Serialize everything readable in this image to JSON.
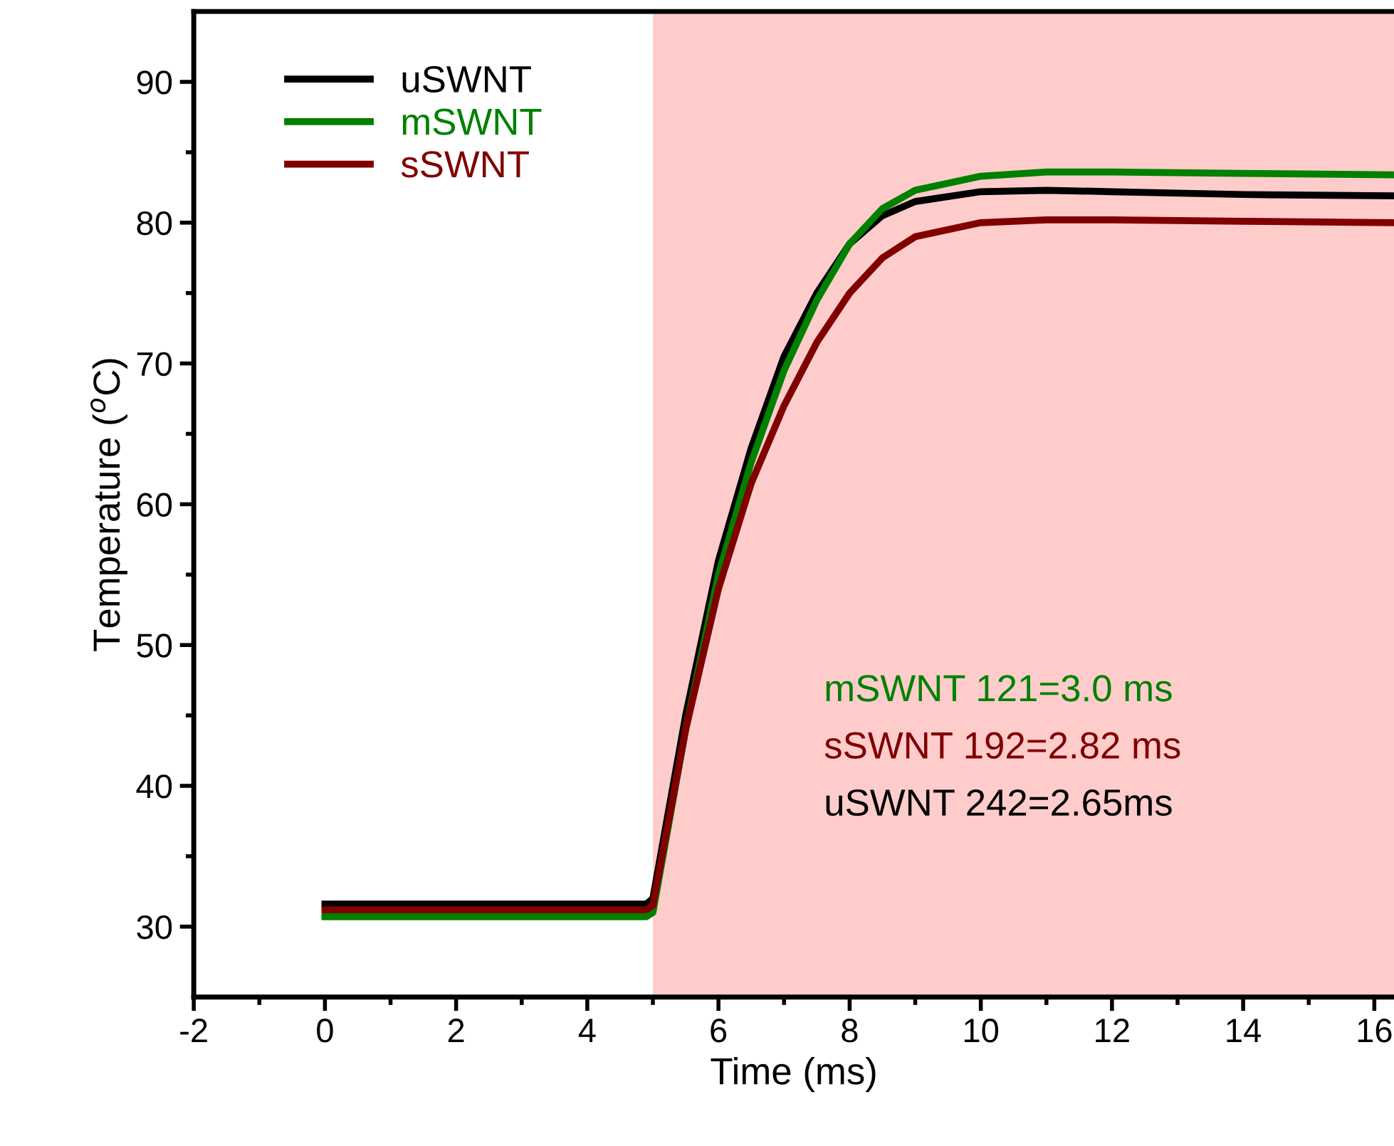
{
  "chart_data": {
    "type": "line",
    "xlabel": "Time (ms)",
    "ylabel": "Temperature ($^{o}$C)",
    "xlim": [
      -2,
      16.3
    ],
    "ylim": [
      25,
      95
    ],
    "xticks": [
      -2,
      0,
      2,
      4,
      6,
      8,
      10,
      12,
      14,
      16
    ],
    "yticks": [
      30,
      40,
      50,
      60,
      70,
      80,
      90
    ],
    "legend": "top left",
    "grid": false,
    "marker": "none",
    "line_style": "solid",
    "bands": [
      {
        "axis": "x",
        "from": 5,
        "to": 16.3,
        "color": "#ffcccc"
      }
    ],
    "annotations": [
      "mSWNT 121=3.0 ms",
      "sSWNT 192=2.82 ms",
      "uSWNT 242=2.65ms"
    ],
    "series": [
      {
        "name": "uSWNT",
        "color": "#000000",
        "x": [
          0,
          4.9,
          5,
          5.5,
          6,
          6.5,
          7,
          7.5,
          8,
          8.5,
          9,
          10,
          11,
          12,
          14,
          16.3
        ],
        "values": [
          31.6,
          31.6,
          32,
          45,
          56,
          64,
          70.5,
          75,
          78.5,
          80.5,
          81.5,
          82.2,
          82.3,
          82.2,
          82,
          81.9
        ]
      },
      {
        "name": "mSWNT",
        "color": "#008000",
        "x": [
          0,
          4.9,
          5,
          5.5,
          6,
          6.5,
          7,
          7.5,
          8,
          8.5,
          9,
          10,
          11,
          12,
          14,
          16.3
        ],
        "values": [
          30.7,
          30.7,
          31,
          44,
          55,
          63,
          69.5,
          74.5,
          78.5,
          81,
          82.3,
          83.3,
          83.6,
          83.6,
          83.5,
          83.4
        ]
      },
      {
        "name": "sSWNT",
        "color": "#800000",
        "x": [
          0,
          4.9,
          5,
          5.5,
          6,
          6.5,
          7,
          7.5,
          8,
          8.5,
          9,
          10,
          11,
          12,
          14,
          16.3
        ],
        "values": [
          31.2,
          31.2,
          31.5,
          44,
          54,
          61.5,
          67,
          71.5,
          75,
          77.5,
          79,
          80,
          80.2,
          80.2,
          80.1,
          80.0
        ]
      }
    ]
  }
}
